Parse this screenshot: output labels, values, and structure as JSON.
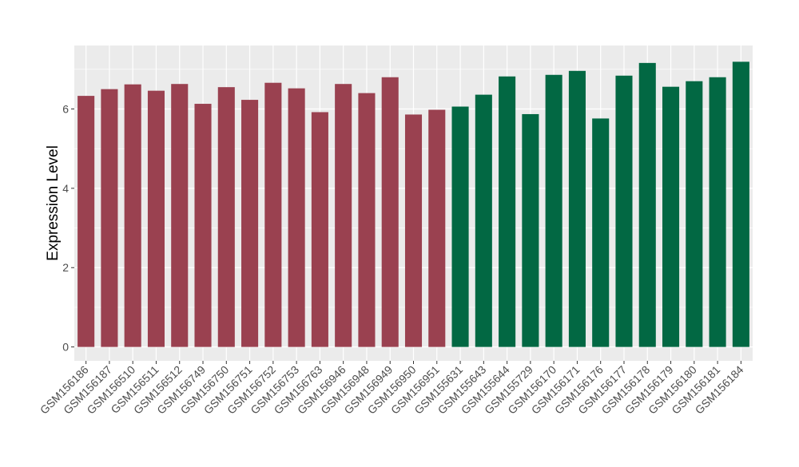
{
  "chart_data": {
    "type": "bar",
    "title": "",
    "xlabel": "",
    "ylabel": "Expression Level",
    "ylim": [
      -0.35,
      7.6
    ],
    "yticks": [
      0,
      2,
      4,
      6
    ],
    "grid": true,
    "legend": "none",
    "colors": {
      "group1": "#9a4150",
      "group2": "#026843",
      "panel": "#ebebeb",
      "grid": "#ffffff",
      "tick_text": "#4d4d4d"
    },
    "categories": [
      "GSM156186",
      "GSM156187",
      "GSM156510",
      "GSM156511",
      "GSM156512",
      "GSM156749",
      "GSM156750",
      "GSM156751",
      "GSM156752",
      "GSM156753",
      "GSM156763",
      "GSM156946",
      "GSM156948",
      "GSM156949",
      "GSM156950",
      "GSM156951",
      "GSM155631",
      "GSM155643",
      "GSM155644",
      "GSM155729",
      "GSM156170",
      "GSM156171",
      "GSM156176",
      "GSM156177",
      "GSM156178",
      "GSM156179",
      "GSM156180",
      "GSM156181",
      "GSM156184"
    ],
    "values": [
      6.33,
      6.5,
      6.62,
      6.46,
      6.63,
      6.13,
      6.55,
      6.23,
      6.66,
      6.52,
      5.92,
      6.63,
      6.4,
      6.8,
      5.86,
      5.98,
      6.06,
      6.36,
      6.82,
      5.87,
      6.86,
      6.96,
      5.76,
      6.84,
      7.16,
      6.56,
      6.7,
      6.8,
      7.19
    ],
    "bar_groups": [
      "group1",
      "group1",
      "group1",
      "group1",
      "group1",
      "group1",
      "group1",
      "group1",
      "group1",
      "group1",
      "group1",
      "group1",
      "group1",
      "group1",
      "group1",
      "group1",
      "group2",
      "group2",
      "group2",
      "group2",
      "group2",
      "group2",
      "group2",
      "group2",
      "group2",
      "group2",
      "group2",
      "group2",
      "group2"
    ]
  }
}
